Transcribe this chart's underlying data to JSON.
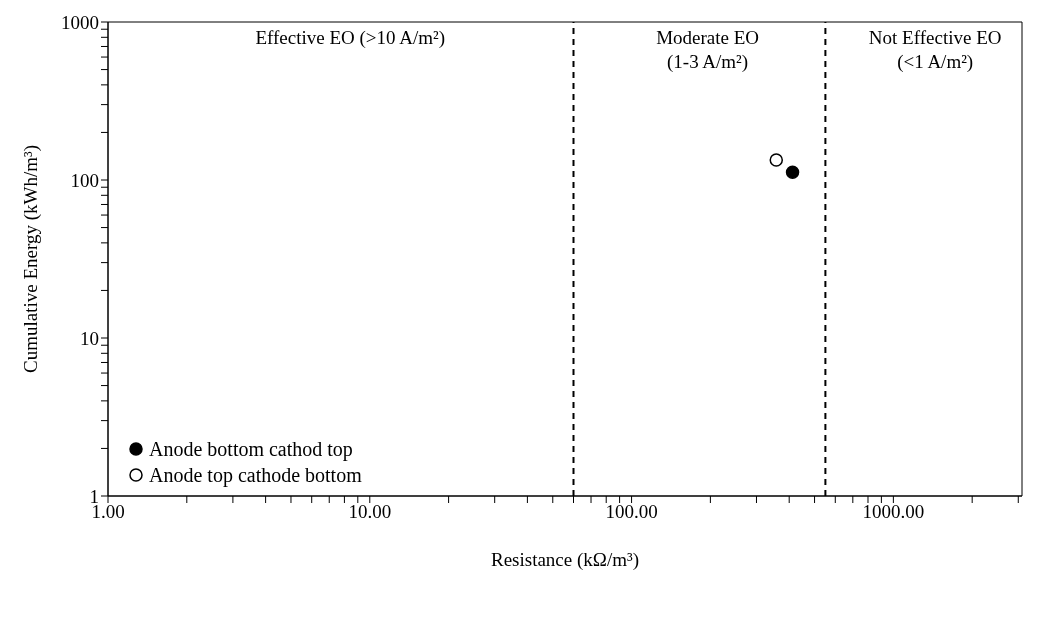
{
  "chart_data": {
    "type": "scatter",
    "xlabel": "Resistance (kΩ/m³)",
    "ylabel": "Cumulative Energy (kWh/m³)",
    "log": "xy",
    "grid": false,
    "legend": "bottom left",
    "marker": "circle",
    "xlim": [
      1,
      3100
    ],
    "ylim": [
      1,
      1000
    ],
    "xticks": [
      {
        "value": 1,
        "label": "1.00"
      },
      {
        "value": 2,
        "label": null
      },
      {
        "value": 3,
        "label": null
      },
      {
        "value": 4,
        "label": null
      },
      {
        "value": 5,
        "label": null
      },
      {
        "value": 6,
        "label": null
      },
      {
        "value": 7,
        "label": null
      },
      {
        "value": 8,
        "label": null
      },
      {
        "value": 9,
        "label": null
      },
      {
        "value": 10,
        "label": "10.00"
      },
      {
        "value": 20,
        "label": null
      },
      {
        "value": 30,
        "label": null
      },
      {
        "value": 40,
        "label": null
      },
      {
        "value": 50,
        "label": null
      },
      {
        "value": 60,
        "label": null
      },
      {
        "value": 70,
        "label": null
      },
      {
        "value": 80,
        "label": null
      },
      {
        "value": 90,
        "label": null
      },
      {
        "value": 100,
        "label": "100.00"
      },
      {
        "value": 200,
        "label": null
      },
      {
        "value": 300,
        "label": null
      },
      {
        "value": 400,
        "label": null
      },
      {
        "value": 500,
        "label": null
      },
      {
        "value": 600,
        "label": null
      },
      {
        "value": 700,
        "label": null
      },
      {
        "value": 800,
        "label": null
      },
      {
        "value": 900,
        "label": null
      },
      {
        "value": 1000,
        "label": "1000.00"
      },
      {
        "value": 2000,
        "label": null
      },
      {
        "value": 3000,
        "label": null
      }
    ],
    "yticks": [
      1,
      {
        "value": 2,
        "label": null
      },
      {
        "value": 3,
        "label": null
      },
      {
        "value": 4,
        "label": null
      },
      {
        "value": 5,
        "label": null
      },
      {
        "value": 6,
        "label": null
      },
      {
        "value": 7,
        "label": null
      },
      {
        "value": 8,
        "label": null
      },
      {
        "value": 9,
        "label": null
      },
      10,
      {
        "value": 20,
        "label": null
      },
      {
        "value": 30,
        "label": null
      },
      {
        "value": 40,
        "label": null
      },
      {
        "value": 50,
        "label": null
      },
      {
        "value": 60,
        "label": null
      },
      {
        "value": 70,
        "label": null
      },
      {
        "value": 80,
        "label": null
      },
      {
        "value": 90,
        "label": null
      },
      100,
      {
        "value": 200,
        "label": null
      },
      {
        "value": 300,
        "label": null
      },
      {
        "value": 400,
        "label": null
      },
      {
        "value": 500,
        "label": null
      },
      {
        "value": 600,
        "label": null
      },
      {
        "value": 700,
        "label": null
      },
      {
        "value": 800,
        "label": null
      },
      {
        "value": 900,
        "label": null
      },
      1000
    ],
    "series": [
      {
        "name": "Anode bottom cathod top",
        "color": "#000000",
        "x": [
          412
        ],
        "values": [
          112
        ]
      },
      {
        "name": "Anode top cathode bottom",
        "color": "#ffffff",
        "x": [
          357
        ],
        "values": [
          134
        ]
      }
    ],
    "ref_lines": [
      {
        "axis": "x",
        "value": 60,
        "label": null,
        "color": "#000000",
        "line_style": "dashed"
      },
      {
        "axis": "x",
        "value": 550,
        "label": null,
        "color": "#000000",
        "line_style": "dashed"
      }
    ],
    "annotations": [
      "Effective EO (>10 A/m²)",
      "Moderate EO\n(1-3 A/m²)",
      "Not Effective EO\n(<1 A/m²)"
    ]
  }
}
